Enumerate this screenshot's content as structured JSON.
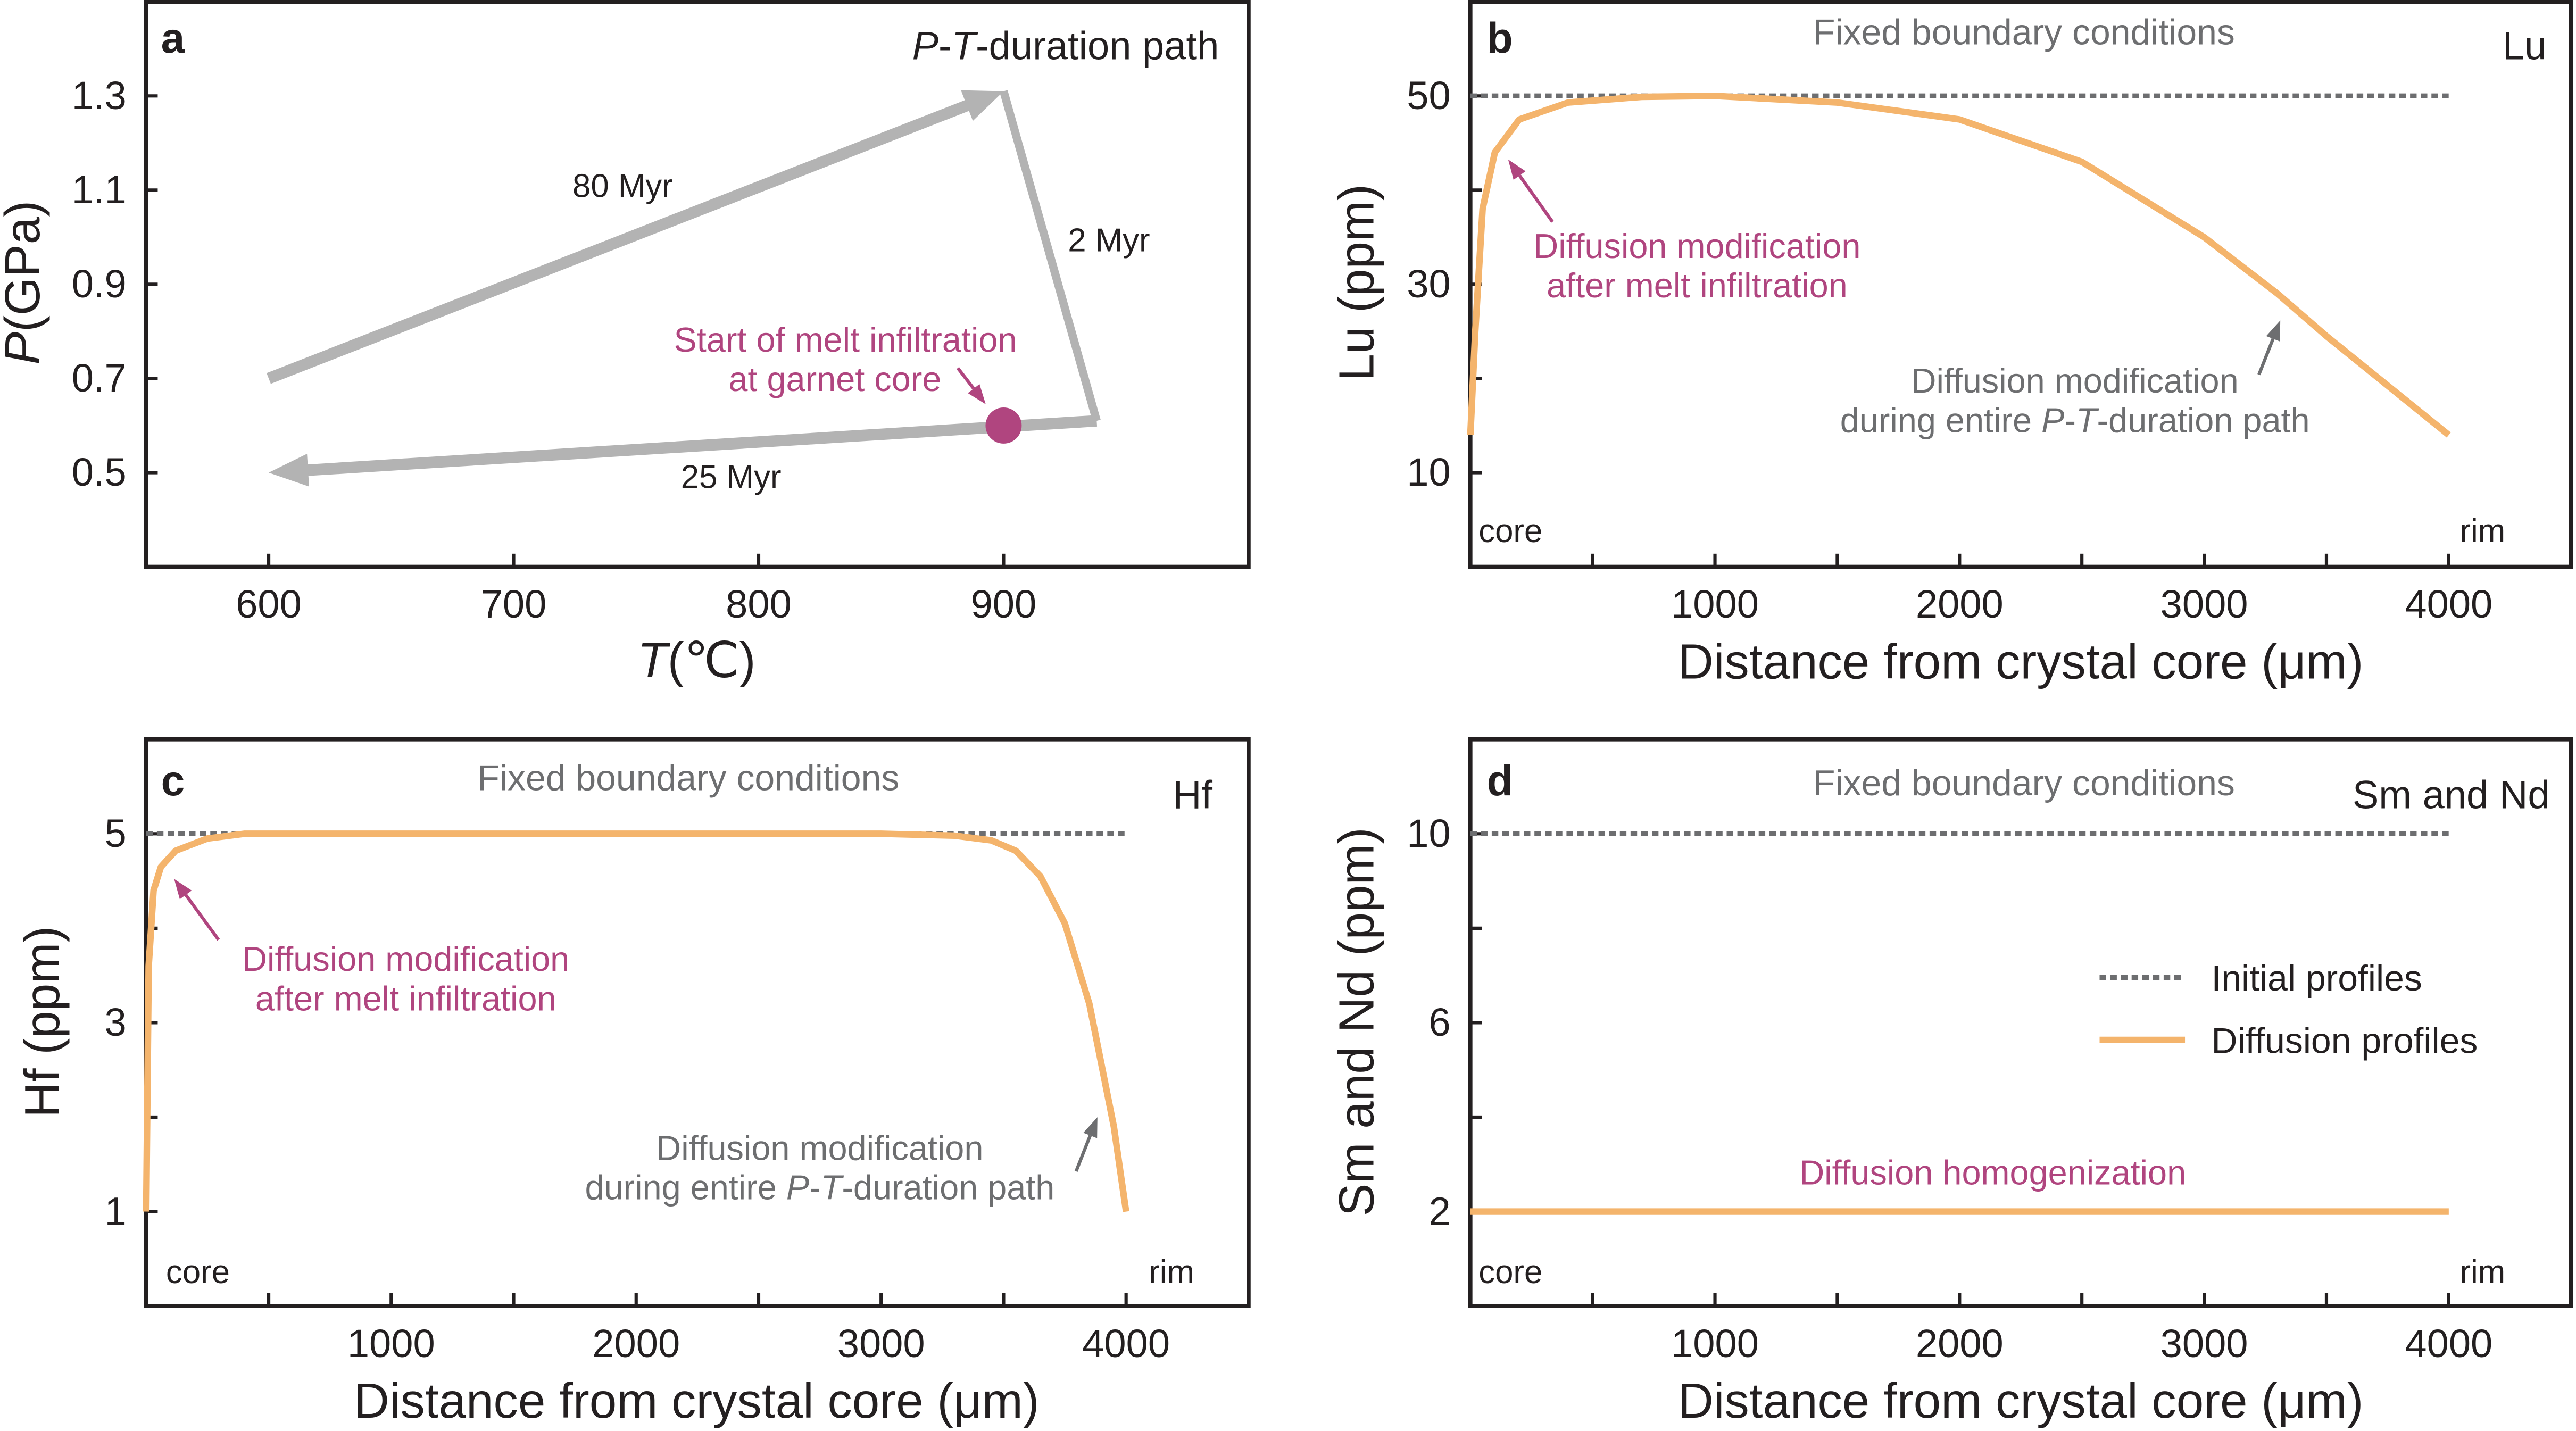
{
  "colors": {
    "path_arrow": "#b3b3b3",
    "melt": "#b0457f",
    "diffusion": "#f4b46c",
    "initial": "#6d6e70",
    "axis": "#231f20"
  },
  "chart_data": [
    {
      "panel": "a",
      "type": "line",
      "title": {
        "p": "P",
        "dash1": "-",
        "t": "T",
        "rest": "-duration path"
      },
      "xlabel": {
        "t": "T",
        "rest": "(℃)"
      },
      "ylabel": {
        "p": "P",
        "rest": "(GPa)"
      },
      "xlim": [
        550,
        1000
      ],
      "ylim": [
        0.3,
        1.5
      ],
      "xticks": [
        600,
        700,
        800,
        900
      ],
      "yticks": [
        0.5,
        0.7,
        0.9,
        1.1,
        1.3
      ],
      "segments": [
        {
          "label": "80 Myr",
          "from": [
            600,
            0.7
          ],
          "to": [
            900,
            1.31
          ],
          "arrow": true
        },
        {
          "label": "2 Myr",
          "from": [
            900,
            1.31
          ],
          "to": [
            938,
            0.61
          ],
          "arrow": false
        },
        {
          "label": "25 Myr",
          "from": [
            938,
            0.61
          ],
          "to": [
            600,
            0.5
          ],
          "arrow": true
        }
      ],
      "marker": {
        "line1": "Start of melt infiltration",
        "line2": "at garnet core",
        "T": 900,
        "P": 0.6
      }
    },
    {
      "panel": "b",
      "type": "line",
      "title": "Fixed boundary conditions",
      "element": "Lu",
      "xlabel": "Distance from crystal core (μm)",
      "ylabel": "Lu (ppm)",
      "xlim": [
        0,
        4500
      ],
      "ylim": [
        0,
        60
      ],
      "xticks": [
        1000,
        2000,
        3000,
        4000
      ],
      "xminor": [
        500,
        1500,
        2500,
        3500
      ],
      "yticks": [
        10,
        30,
        50
      ],
      "yminor": [
        20,
        40
      ],
      "core_label": "core",
      "rim_label": "rim",
      "series": [
        {
          "name": "Initial profiles",
          "style": "dashed",
          "x": [
            0,
            4000
          ],
          "y": [
            50,
            50
          ]
        },
        {
          "name": "Diffusion profiles",
          "style": "solid",
          "x": [
            0,
            20,
            50,
            100,
            200,
            400,
            700,
            1000,
            1500,
            2000,
            2500,
            3000,
            3300,
            3500,
            4000
          ],
          "y": [
            14,
            25,
            38,
            44,
            47.5,
            49.3,
            49.9,
            50,
            49.3,
            47.5,
            43,
            35,
            29,
            24.5,
            14
          ]
        }
      ],
      "annotations": {
        "melt": {
          "line1": "Diffusion modification",
          "line2": "after melt infiltration"
        },
        "path": {
          "line1": "Diffusion modification",
          "pre": "during entire ",
          "p": "P",
          "dash1": "-",
          "t": "T",
          "rest": "-duration path"
        }
      }
    },
    {
      "panel": "c",
      "type": "line",
      "title": "Fixed boundary conditions",
      "element": "Hf",
      "xlabel": "Distance from crystal core (μm)",
      "ylabel": "Hf (ppm)",
      "xlim": [
        0,
        4500
      ],
      "ylim": [
        0,
        6
      ],
      "xticks": [
        1000,
        2000,
        3000,
        4000
      ],
      "xminor": [
        500,
        1500,
        2500,
        3500
      ],
      "yticks": [
        1,
        3,
        5
      ],
      "yminor": [
        2,
        4
      ],
      "core_label": "core",
      "rim_label": "rim",
      "series": [
        {
          "name": "Initial profiles",
          "style": "dashed",
          "x": [
            0,
            4000
          ],
          "y": [
            5,
            5
          ]
        },
        {
          "name": "Diffusion profiles",
          "style": "solid",
          "x": [
            0,
            10,
            30,
            60,
            120,
            250,
            400,
            1000,
            2000,
            3000,
            3300,
            3450,
            3550,
            3650,
            3750,
            3850,
            3950,
            4000
          ],
          "y": [
            1,
            3.6,
            4.4,
            4.65,
            4.82,
            4.95,
            5,
            5,
            5,
            5,
            4.98,
            4.93,
            4.82,
            4.55,
            4.05,
            3.2,
            1.9,
            1
          ]
        }
      ],
      "annotations": {
        "melt": {
          "line1": "Diffusion modification",
          "line2": "after melt infiltration"
        },
        "path": {
          "line1": "Diffusion modification",
          "pre": "during entire ",
          "p": "P",
          "dash1": "-",
          "t": "T",
          "rest": "-duration path"
        }
      }
    },
    {
      "panel": "d",
      "type": "line",
      "title": "Fixed boundary conditions",
      "element": "Sm and Nd",
      "xlabel": "Distance from crystal core (μm)",
      "ylabel": "Sm and Nd (ppm)",
      "xlim": [
        0,
        4500
      ],
      "ylim": [
        0,
        12
      ],
      "xticks": [
        1000,
        2000,
        3000,
        4000
      ],
      "xminor": [
        500,
        1500,
        2500,
        3500
      ],
      "yticks": [
        2,
        6,
        10
      ],
      "yminor": [
        4,
        8
      ],
      "core_label": "core",
      "rim_label": "rim",
      "series": [
        {
          "name": "Initial profiles",
          "style": "dashed",
          "x": [
            0,
            4000
          ],
          "y": [
            10,
            10
          ]
        },
        {
          "name": "Diffusion profiles",
          "style": "solid",
          "x": [
            0,
            4000
          ],
          "y": [
            2,
            2
          ]
        }
      ],
      "legend": {
        "position": "right",
        "entries": [
          "Initial profiles",
          "Diffusion profiles"
        ]
      },
      "annotations": {
        "homog": "Diffusion homogenization"
      }
    }
  ]
}
